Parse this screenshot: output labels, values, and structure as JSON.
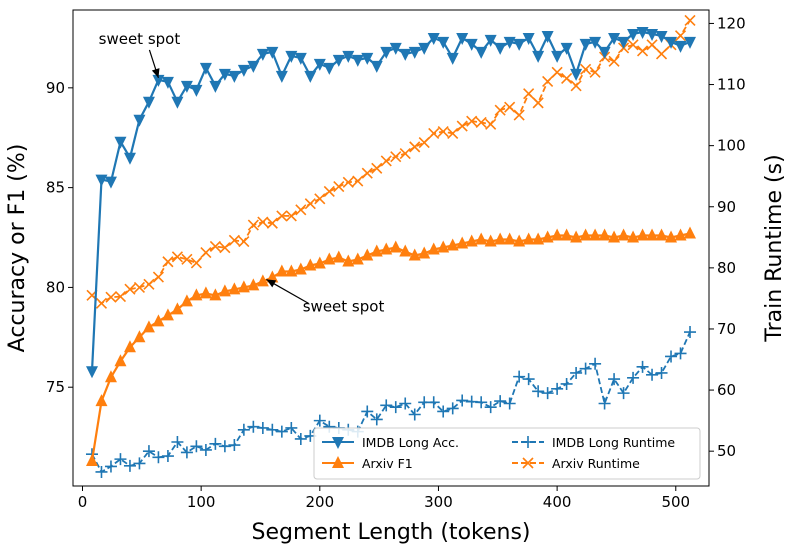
{
  "chart_data": {
    "type": "line",
    "xlabel": "Segment Length (tokens)",
    "ylabel_left": "Accuracy or F1 (%)",
    "ylabel_right": "Train Runtime (s)",
    "xlim": [
      -8,
      528
    ],
    "ylim_left": [
      70.05,
      93.9
    ],
    "ylim_right": [
      44.3,
      122.2
    ],
    "x_ticks": [
      0,
      100,
      200,
      300,
      400,
      500
    ],
    "y_left_ticks": [
      75,
      80,
      85,
      90
    ],
    "y_right_ticks": [
      50,
      60,
      70,
      80,
      90,
      100,
      110,
      120
    ],
    "colors": {
      "blue": "#1f77b4",
      "orange": "#ff7f0e"
    },
    "series": [
      {
        "name": "IMDB Long Acc.",
        "axis": "left",
        "color": "#1f77b4",
        "marker": "triangle-down",
        "linestyle": "solid",
        "points": [
          [
            8,
            75.8
          ],
          [
            16,
            85.4
          ],
          [
            24,
            85.3
          ],
          [
            32,
            87.3
          ],
          [
            40,
            86.5
          ],
          [
            48,
            88.4
          ],
          [
            56,
            89.3
          ],
          [
            64,
            90.4
          ],
          [
            72,
            90.3
          ],
          [
            80,
            89.3
          ],
          [
            88,
            90.1
          ],
          [
            96,
            89.9
          ],
          [
            104,
            91.0
          ],
          [
            112,
            90.1
          ],
          [
            120,
            90.7
          ],
          [
            128,
            90.6
          ],
          [
            136,
            90.9
          ],
          [
            144,
            91.1
          ],
          [
            152,
            91.7
          ],
          [
            160,
            91.8
          ],
          [
            168,
            90.6
          ],
          [
            176,
            91.6
          ],
          [
            184,
            91.5
          ],
          [
            192,
            90.6
          ],
          [
            200,
            91.2
          ],
          [
            208,
            91.0
          ],
          [
            216,
            91.4
          ],
          [
            224,
            91.6
          ],
          [
            232,
            91.4
          ],
          [
            240,
            91.5
          ],
          [
            248,
            91.1
          ],
          [
            256,
            91.8
          ],
          [
            264,
            92.0
          ],
          [
            272,
            91.7
          ],
          [
            280,
            91.8
          ],
          [
            288,
            92.0
          ],
          [
            296,
            92.5
          ],
          [
            304,
            92.3
          ],
          [
            312,
            91.5
          ],
          [
            320,
            92.5
          ],
          [
            328,
            92.2
          ],
          [
            336,
            91.8
          ],
          [
            344,
            92.4
          ],
          [
            352,
            92.0
          ],
          [
            360,
            92.3
          ],
          [
            368,
            92.2
          ],
          [
            376,
            92.5
          ],
          [
            384,
            91.6
          ],
          [
            392,
            92.6
          ],
          [
            400,
            91.6
          ],
          [
            408,
            92.0
          ],
          [
            416,
            90.7
          ],
          [
            424,
            92.2
          ],
          [
            432,
            92.3
          ],
          [
            440,
            91.8
          ],
          [
            448,
            92.5
          ],
          [
            456,
            92.3
          ],
          [
            464,
            92.7
          ],
          [
            472,
            92.8
          ],
          [
            480,
            92.7
          ],
          [
            488,
            92.6
          ],
          [
            496,
            92.3
          ],
          [
            504,
            92.1
          ],
          [
            512,
            92.3
          ]
        ]
      },
      {
        "name": "Arxiv F1",
        "axis": "left",
        "color": "#ff7f0e",
        "marker": "triangle-up",
        "linestyle": "solid",
        "points": [
          [
            8,
            71.3
          ],
          [
            16,
            74.3
          ],
          [
            24,
            75.5
          ],
          [
            32,
            76.3
          ],
          [
            40,
            77.0
          ],
          [
            48,
            77.5
          ],
          [
            56,
            78.0
          ],
          [
            64,
            78.3
          ],
          [
            72,
            78.6
          ],
          [
            80,
            78.9
          ],
          [
            88,
            79.3
          ],
          [
            96,
            79.6
          ],
          [
            104,
            79.7
          ],
          [
            112,
            79.6
          ],
          [
            120,
            79.8
          ],
          [
            128,
            79.9
          ],
          [
            136,
            80.0
          ],
          [
            144,
            80.1
          ],
          [
            152,
            80.3
          ],
          [
            160,
            80.5
          ],
          [
            168,
            80.8
          ],
          [
            176,
            80.8
          ],
          [
            184,
            80.9
          ],
          [
            192,
            81.1
          ],
          [
            200,
            81.2
          ],
          [
            208,
            81.4
          ],
          [
            216,
            81.5
          ],
          [
            224,
            81.3
          ],
          [
            232,
            81.4
          ],
          [
            240,
            81.6
          ],
          [
            248,
            81.8
          ],
          [
            256,
            81.9
          ],
          [
            264,
            82.0
          ],
          [
            272,
            81.8
          ],
          [
            280,
            81.6
          ],
          [
            288,
            81.7
          ],
          [
            296,
            81.9
          ],
          [
            304,
            82.0
          ],
          [
            312,
            82.1
          ],
          [
            320,
            82.2
          ],
          [
            328,
            82.3
          ],
          [
            336,
            82.4
          ],
          [
            344,
            82.3
          ],
          [
            352,
            82.4
          ],
          [
            360,
            82.4
          ],
          [
            368,
            82.3
          ],
          [
            376,
            82.4
          ],
          [
            384,
            82.4
          ],
          [
            392,
            82.5
          ],
          [
            400,
            82.6
          ],
          [
            408,
            82.6
          ],
          [
            416,
            82.5
          ],
          [
            424,
            82.6
          ],
          [
            432,
            82.6
          ],
          [
            440,
            82.6
          ],
          [
            448,
            82.5
          ],
          [
            456,
            82.6
          ],
          [
            464,
            82.5
          ],
          [
            472,
            82.6
          ],
          [
            480,
            82.6
          ],
          [
            488,
            82.6
          ],
          [
            496,
            82.5
          ],
          [
            504,
            82.6
          ],
          [
            512,
            82.7
          ]
        ]
      },
      {
        "name": "IMDB Long Runtime",
        "axis": "right",
        "color": "#1f77b4",
        "marker": "plus",
        "linestyle": "dashed",
        "points": [
          [
            8,
            49.5
          ],
          [
            16,
            46.6
          ],
          [
            24,
            47.5
          ],
          [
            32,
            48.7
          ],
          [
            40,
            47.6
          ],
          [
            48,
            48.0
          ],
          [
            56,
            50.0
          ],
          [
            64,
            49.0
          ],
          [
            72,
            49.2
          ],
          [
            80,
            51.5
          ],
          [
            88,
            49.8
          ],
          [
            96,
            50.8
          ],
          [
            104,
            50.2
          ],
          [
            112,
            51.2
          ],
          [
            120,
            50.8
          ],
          [
            128,
            51.0
          ],
          [
            136,
            53.5
          ],
          [
            144,
            54.0
          ],
          [
            152,
            53.8
          ],
          [
            160,
            53.5
          ],
          [
            168,
            53.2
          ],
          [
            176,
            53.8
          ],
          [
            184,
            52.0
          ],
          [
            192,
            52.5
          ],
          [
            200,
            55.0
          ],
          [
            208,
            54.0
          ],
          [
            216,
            53.8
          ],
          [
            224,
            53.5
          ],
          [
            232,
            53.2
          ],
          [
            240,
            56.5
          ],
          [
            248,
            55.2
          ],
          [
            256,
            57.5
          ],
          [
            264,
            57.2
          ],
          [
            272,
            57.8
          ],
          [
            280,
            56.0
          ],
          [
            288,
            58.0
          ],
          [
            296,
            58.0
          ],
          [
            304,
            56.5
          ],
          [
            312,
            57.0
          ],
          [
            320,
            58.3
          ],
          [
            328,
            58.1
          ],
          [
            336,
            58.0
          ],
          [
            344,
            57.2
          ],
          [
            352,
            58.2
          ],
          [
            360,
            57.8
          ],
          [
            368,
            62.2
          ],
          [
            376,
            61.8
          ],
          [
            384,
            59.8
          ],
          [
            392,
            59.5
          ],
          [
            400,
            60.2
          ],
          [
            408,
            61.0
          ],
          [
            416,
            62.8
          ],
          [
            424,
            63.5
          ],
          [
            432,
            64.3
          ],
          [
            440,
            57.8
          ],
          [
            448,
            61.8
          ],
          [
            456,
            59.5
          ],
          [
            464,
            62.0
          ],
          [
            472,
            63.8
          ],
          [
            480,
            62.5
          ],
          [
            488,
            62.8
          ],
          [
            496,
            65.5
          ],
          [
            504,
            66.0
          ],
          [
            512,
            69.5
          ]
        ]
      },
      {
        "name": "Arxiv Runtime",
        "axis": "right",
        "color": "#ff7f0e",
        "marker": "x",
        "linestyle": "dashed",
        "points": [
          [
            8,
            75.5
          ],
          [
            16,
            74.2
          ],
          [
            24,
            75.2
          ],
          [
            32,
            75.3
          ],
          [
            40,
            76.5
          ],
          [
            48,
            76.8
          ],
          [
            56,
            77.3
          ],
          [
            64,
            78.5
          ],
          [
            72,
            81.0
          ],
          [
            80,
            81.8
          ],
          [
            88,
            81.4
          ],
          [
            96,
            80.8
          ],
          [
            104,
            82.5
          ],
          [
            112,
            83.5
          ],
          [
            120,
            83.3
          ],
          [
            128,
            84.5
          ],
          [
            136,
            84.3
          ],
          [
            144,
            87.0
          ],
          [
            152,
            87.5
          ],
          [
            160,
            87.3
          ],
          [
            168,
            88.5
          ],
          [
            176,
            88.5
          ],
          [
            184,
            89.5
          ],
          [
            192,
            90.5
          ],
          [
            200,
            91.3
          ],
          [
            208,
            92.5
          ],
          [
            216,
            93.3
          ],
          [
            224,
            94.0
          ],
          [
            232,
            94.2
          ],
          [
            240,
            95.5
          ],
          [
            248,
            96.3
          ],
          [
            256,
            97.5
          ],
          [
            264,
            98.2
          ],
          [
            272,
            98.7
          ],
          [
            280,
            99.8
          ],
          [
            288,
            100.5
          ],
          [
            296,
            102.0
          ],
          [
            304,
            102.3
          ],
          [
            312,
            102.0
          ],
          [
            320,
            103.2
          ],
          [
            328,
            104.0
          ],
          [
            336,
            103.8
          ],
          [
            344,
            103.5
          ],
          [
            352,
            105.8
          ],
          [
            360,
            106.3
          ],
          [
            368,
            105.0
          ],
          [
            376,
            108.5
          ],
          [
            384,
            107.0
          ],
          [
            392,
            110.5
          ],
          [
            400,
            112.0
          ],
          [
            408,
            111.0
          ],
          [
            416,
            109.8
          ],
          [
            424,
            112.5
          ],
          [
            432,
            112.0
          ],
          [
            440,
            114.5
          ],
          [
            448,
            113.8
          ],
          [
            456,
            116.0
          ],
          [
            464,
            116.5
          ],
          [
            472,
            115.5
          ],
          [
            480,
            116.5
          ],
          [
            488,
            115.0
          ],
          [
            496,
            116.5
          ],
          [
            504,
            118.0
          ],
          [
            512,
            120.5
          ]
        ]
      }
    ],
    "annotations": [
      {
        "text": "sweet spot",
        "text_at": [
          48,
          92.2
        ],
        "arrow_to": [
          64,
          90.5
        ],
        "axis": "left"
      },
      {
        "text": "sweet spot",
        "text_at": [
          220,
          78.8
        ],
        "arrow_to": [
          155,
          80.4
        ],
        "axis": "left"
      }
    ],
    "legend": {
      "position": "lower-right",
      "columns": 2,
      "entries": [
        "IMDB Long Acc.",
        "Arxiv F1",
        "IMDB Long Runtime",
        "Arxiv Runtime"
      ]
    }
  }
}
